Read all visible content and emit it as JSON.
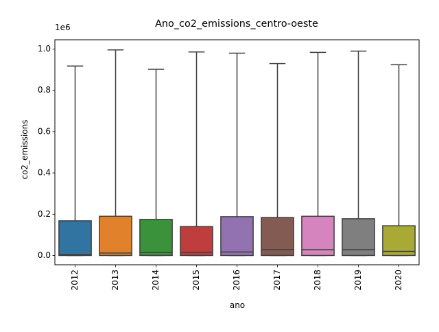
{
  "chart_data": {
    "type": "box",
    "title": "Ano_co2_emissions_centro-oeste",
    "xlabel": "ano",
    "ylabel": "co2_emissions",
    "offset_label": "1e6",
    "scale": 1000000,
    "ylim": [
      -0.045,
      1.045
    ],
    "yticks": [
      0.0,
      0.2,
      0.4,
      0.6,
      0.8,
      1.0
    ],
    "ytick_labels": [
      "0.0",
      "0.2",
      "0.4",
      "0.6",
      "0.8",
      "1.0"
    ],
    "grid": false,
    "legend": "none",
    "categories": [
      "2012",
      "2013",
      "2014",
      "2015",
      "2016",
      "2017",
      "2018",
      "2019",
      "2020"
    ],
    "colors": [
      "#3274a1",
      "#e1812c",
      "#3a923a",
      "#c03d3e",
      "#9372b2",
      "#845b53",
      "#d684bd",
      "#7f7f7f",
      "#a9aa35"
    ],
    "boxes": [
      {
        "year": "2012",
        "whislo": 0.0,
        "q1": 0.0,
        "med": 0.005,
        "q3": 0.168,
        "whishi": 0.918
      },
      {
        "year": "2013",
        "whislo": 0.0,
        "q1": 0.0,
        "med": 0.012,
        "q3": 0.19,
        "whishi": 0.996
      },
      {
        "year": "2014",
        "whislo": 0.0,
        "q1": 0.0,
        "med": 0.014,
        "q3": 0.175,
        "whishi": 0.902
      },
      {
        "year": "2015",
        "whislo": 0.0,
        "q1": 0.0,
        "med": 0.015,
        "q3": 0.14,
        "whishi": 0.986
      },
      {
        "year": "2016",
        "whislo": 0.0,
        "q1": 0.0,
        "med": 0.017,
        "q3": 0.188,
        "whishi": 0.98
      },
      {
        "year": "2017",
        "whislo": 0.0,
        "q1": 0.0,
        "med": 0.028,
        "q3": 0.184,
        "whishi": 0.93
      },
      {
        "year": "2018",
        "whislo": 0.0,
        "q1": 0.0,
        "med": 0.028,
        "q3": 0.19,
        "whishi": 0.984
      },
      {
        "year": "2019",
        "whislo": 0.0,
        "q1": 0.0,
        "med": 0.028,
        "q3": 0.178,
        "whishi": 0.99
      },
      {
        "year": "2020",
        "whislo": 0.0,
        "q1": 0.0,
        "med": 0.02,
        "q3": 0.144,
        "whishi": 0.924
      }
    ]
  }
}
